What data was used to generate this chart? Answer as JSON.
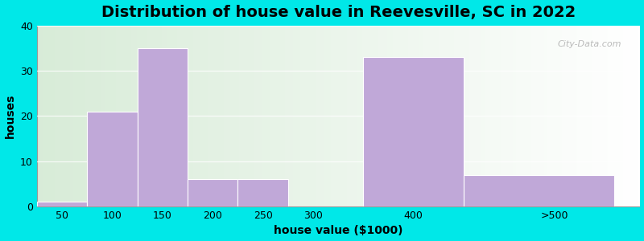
{
  "title": "Distribution of house value in Reevesville, SC in 2022",
  "xlabel": "house value ($1000)",
  "ylabel": "houses",
  "bar_edges": [
    25,
    75,
    125,
    175,
    225,
    275,
    350,
    450,
    600
  ],
  "bar_values": [
    1,
    21,
    35,
    6,
    6,
    0,
    33,
    7
  ],
  "xtick_positions": [
    50,
    100,
    150,
    200,
    250,
    300,
    400
  ],
  "xtick_labels": [
    "50",
    "100",
    "150",
    "200",
    "250",
    "300",
    "400"
  ],
  "xtick_extra_pos": 540,
  "xtick_extra_label": ">500",
  "bar_color": "#c0a8d8",
  "bar_edgecolor": "#ffffff",
  "ylim": [
    0,
    40
  ],
  "xlim": [
    25,
    625
  ],
  "yticks": [
    0,
    10,
    20,
    30,
    40
  ],
  "fig_bg_color": "#00e8e8",
  "title_fontsize": 14,
  "label_fontsize": 10,
  "tick_fontsize": 9,
  "watermark_text": "City-Data.com"
}
